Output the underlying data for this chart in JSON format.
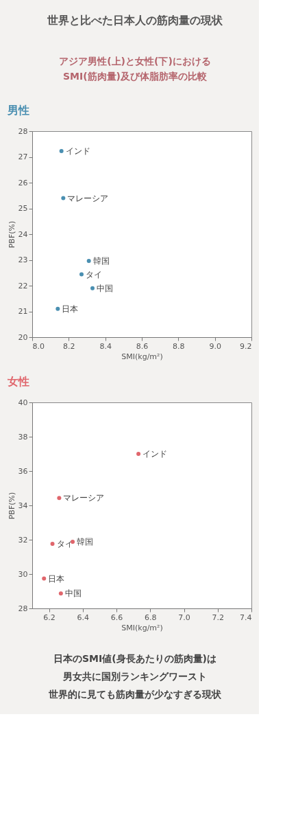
{
  "chart_data": [
    {
      "type": "scatter",
      "title": "男性",
      "xlabel": "SMI(kg/m²)",
      "ylabel": "PBF(%)",
      "xlim": [
        8.0,
        9.2
      ],
      "xticks": [
        {
          "value": 8,
          "label": "8.0"
        },
        8.2,
        8.4,
        8.6,
        8.8,
        {
          "value": 9,
          "label": "9.0"
        },
        9.2
      ],
      "ylim": [
        20,
        28
      ],
      "yticks": [
        20,
        21,
        22,
        23,
        24,
        25,
        26,
        27,
        28
      ],
      "x": [
        8.16,
        8.17,
        8.31,
        8.27,
        8.33,
        8.14
      ],
      "series": [
        {
          "color": "#4a8fb1",
          "values": [
            27.23,
            25.4,
            22.96,
            22.44,
            21.9,
            21.1
          ]
        }
      ],
      "marker": "circle",
      "grid": false,
      "annotations": [
        "世界と比べた日本人の筋肉量の現状",
        "アジア男性(上)と女性(下)における\nSMI(筋肉量)及び体脂肪率の比較",
        {
          "text": "インド",
          "x": 8.16,
          "y": 27.23
        },
        {
          "text": "マレーシア",
          "x": 8.17,
          "y": 25.4
        },
        {
          "text": "韓国",
          "x": 8.31,
          "y": 22.96
        },
        {
          "text": "タイ",
          "x": 8.27,
          "y": 22.44
        },
        {
          "text": "中国",
          "x": 8.33,
          "y": 21.9
        },
        {
          "text": "日本",
          "x": 8.14,
          "y": 21.1
        }
      ]
    },
    {
      "type": "scatter",
      "title": "女性",
      "xlabel": "SMI(kg/m²)",
      "ylabel": "PBF(%)",
      "xlim": [
        6.1,
        7.4
      ],
      "xticks": [
        6.2,
        6.4,
        6.6,
        6.8,
        {
          "value": 7,
          "label": "7.0"
        },
        7.2,
        7.4
      ],
      "ylim": [
        28,
        40
      ],
      "yticks": [
        28,
        30,
        32,
        34,
        36,
        38,
        40
      ],
      "x": [
        6.73,
        6.26,
        6.22,
        6.34,
        6.17,
        6.27
      ],
      "series": [
        {
          "color": "#e0666c",
          "values": [
            37.0,
            34.43,
            31.76,
            31.88,
            29.74,
            28.87
          ]
        }
      ],
      "marker": "circle",
      "grid": false,
      "annotations": [
        {
          "text": "インド",
          "x": 6.73,
          "y": 37.0
        },
        {
          "text": "マレーシア",
          "x": 6.26,
          "y": 34.43
        },
        {
          "text": "タイ",
          "x": 6.22,
          "y": 31.76
        },
        {
          "text": "韓国",
          "x": 6.34,
          "y": 31.88
        },
        {
          "text": "日本",
          "x": 6.17,
          "y": 29.74
        },
        {
          "text": "中国",
          "x": 6.27,
          "y": 28.87
        },
        "日本のSMI値(身長あたりの筋肉量)は",
        "男女共に国別ランキングワースト",
        "世界的に見ても筋肉量が少なすぎる現状"
      ]
    }
  ]
}
